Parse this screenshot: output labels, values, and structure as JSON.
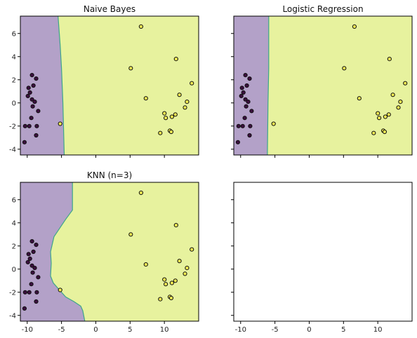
{
  "colors": {
    "purple_region": "#b3a1c8",
    "yellow_region": "#e7f29e",
    "boundary": "#3da58a",
    "class0_point": "#3b0f3f",
    "class1_point": "#f6ee52",
    "point_edge": "#111111",
    "axis": "#000000"
  },
  "points": {
    "class0": [
      [
        -9.3,
        2.4
      ],
      [
        -8.7,
        2.1
      ],
      [
        -9.1,
        1.5
      ],
      [
        -9.8,
        1.3
      ],
      [
        -9.6,
        0.9
      ],
      [
        -9.9,
        0.6
      ],
      [
        -9.3,
        0.3
      ],
      [
        -8.9,
        0.1
      ],
      [
        -9.2,
        -0.3
      ],
      [
        -8.4,
        -0.7
      ],
      [
        -9.4,
        -1.3
      ],
      [
        -10.3,
        -2.0
      ],
      [
        -9.7,
        -2.0
      ],
      [
        -8.6,
        -2.0
      ],
      [
        -8.7,
        -2.8
      ],
      [
        -10.4,
        -3.4
      ]
    ],
    "class1": [
      [
        6.6,
        6.6
      ],
      [
        5.1,
        3.0
      ],
      [
        11.7,
        3.8
      ],
      [
        14.0,
        1.7
      ],
      [
        12.2,
        0.7
      ],
      [
        7.3,
        0.4
      ],
      [
        13.3,
        0.1
      ],
      [
        13.0,
        -0.4
      ],
      [
        10.0,
        -0.9
      ],
      [
        11.6,
        -1.0
      ],
      [
        10.2,
        -1.3
      ],
      [
        11.1,
        -1.2
      ],
      [
        10.8,
        -2.4
      ],
      [
        11.0,
        -2.5
      ],
      [
        9.4,
        -2.6
      ],
      [
        -5.2,
        -1.8
      ]
    ]
  },
  "chart_data": [
    {
      "type": "scatter",
      "title": "Naive Bayes",
      "xlim": [
        -11,
        15
      ],
      "ylim": [
        -4.5,
        7.5
      ],
      "xticks": [],
      "yticks": [
        -4,
        -2,
        0,
        2,
        4,
        6
      ],
      "boundary_x": [
        [
          -4.6,
          -4.5
        ],
        [
          -4.8,
          0
        ],
        [
          -5.0,
          3
        ],
        [
          -5.2,
          5
        ],
        [
          -5.5,
          7.5
        ]
      ],
      "series": [
        {
          "points_ref": "points.class0"
        },
        {
          "points_ref": "points.class1"
        }
      ]
    },
    {
      "type": "scatter",
      "title": "Logistic Regression",
      "xlim": [
        -11,
        15
      ],
      "ylim": [
        -4.5,
        7.5
      ],
      "xticks": [],
      "yticks": [],
      "boundary_x": [
        [
          -6.1,
          -4.5
        ],
        [
          -6.0,
          0
        ],
        [
          -5.9,
          3
        ],
        [
          -5.9,
          7.5
        ]
      ],
      "series": [
        {
          "points_ref": "points.class0"
        },
        {
          "points_ref": "points.class1"
        }
      ]
    },
    {
      "type": "scatter",
      "title": "KNN (n=3)",
      "xlim": [
        -11,
        15
      ],
      "ylim": [
        -4.5,
        7.5
      ],
      "xticks": [
        -10,
        -5,
        0,
        5,
        10
      ],
      "yticks": [
        -4,
        -2,
        0,
        2,
        4,
        6
      ],
      "boundary_x": [
        [
          -1.6,
          -4.5
        ],
        [
          -1.9,
          -3.6
        ],
        [
          -2.2,
          -3.2
        ],
        [
          -3.2,
          -2.8
        ],
        [
          -4.4,
          -2.4
        ],
        [
          -5.3,
          -1.8
        ],
        [
          -6.2,
          -1.2
        ],
        [
          -6.6,
          -0.6
        ],
        [
          -6.5,
          0.5
        ],
        [
          -6.6,
          1.5
        ],
        [
          -6.1,
          2.8
        ],
        [
          -4.4,
          4.3
        ],
        [
          -3.4,
          5.1
        ],
        [
          -3.4,
          5.9
        ],
        [
          -3.4,
          7.5
        ]
      ],
      "series": [
        {
          "points_ref": "points.class0"
        },
        {
          "points_ref": "points.class1"
        }
      ]
    },
    {
      "type": "scatter",
      "title": "",
      "xlim": [
        -11,
        15
      ],
      "ylim": [
        -4.5,
        7.5
      ],
      "xticks": [
        -10,
        -5,
        0,
        5,
        10
      ],
      "yticks": [],
      "empty": true,
      "series": []
    }
  ],
  "titles": {
    "panel0": "Naive Bayes",
    "panel1": "Logistic Regression",
    "panel2": "KNN (n=3)"
  }
}
